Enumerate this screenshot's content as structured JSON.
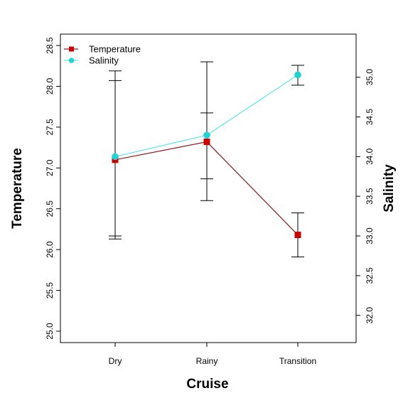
{
  "chart_data": {
    "type": "line",
    "title": "",
    "xlabel": "Cruise",
    "ylabel_left": "Temperature",
    "ylabel_right": "Salinity",
    "categories": [
      "Dry",
      "Rainy",
      "Transition"
    ],
    "ylim_left": [
      25.0,
      28.5
    ],
    "ylim_right": [
      31.8,
      35.4
    ],
    "yticks_left": [
      "25.0",
      "25.5",
      "26.0",
      "26.5",
      "27.0",
      "27.5",
      "28.0",
      "28.5"
    ],
    "yticks_right": [
      "32.0",
      "32.5",
      "33.0",
      "33.5",
      "34.0",
      "34.5",
      "35.0"
    ],
    "legend_position": "top-left",
    "grid": false,
    "series": [
      {
        "name": "Temperature",
        "axis": "left",
        "color": "#cc0000",
        "line_color": "#8b1a1a",
        "marker": "square",
        "values": [
          27.1,
          27.32,
          26.18
        ],
        "error_low": [
          26.13,
          26.6,
          25.91
        ],
        "error_high": [
          28.07,
          28.3,
          26.45
        ]
      },
      {
        "name": "Salinity",
        "axis": "right",
        "color": "#22d3d3",
        "line_color": "#5fe6e6",
        "marker": "circle",
        "values": [
          34.0,
          34.27,
          35.03
        ],
        "error_low": [
          33.0,
          33.72,
          34.9
        ],
        "error_high": [
          35.08,
          34.55,
          35.15
        ]
      }
    ]
  }
}
